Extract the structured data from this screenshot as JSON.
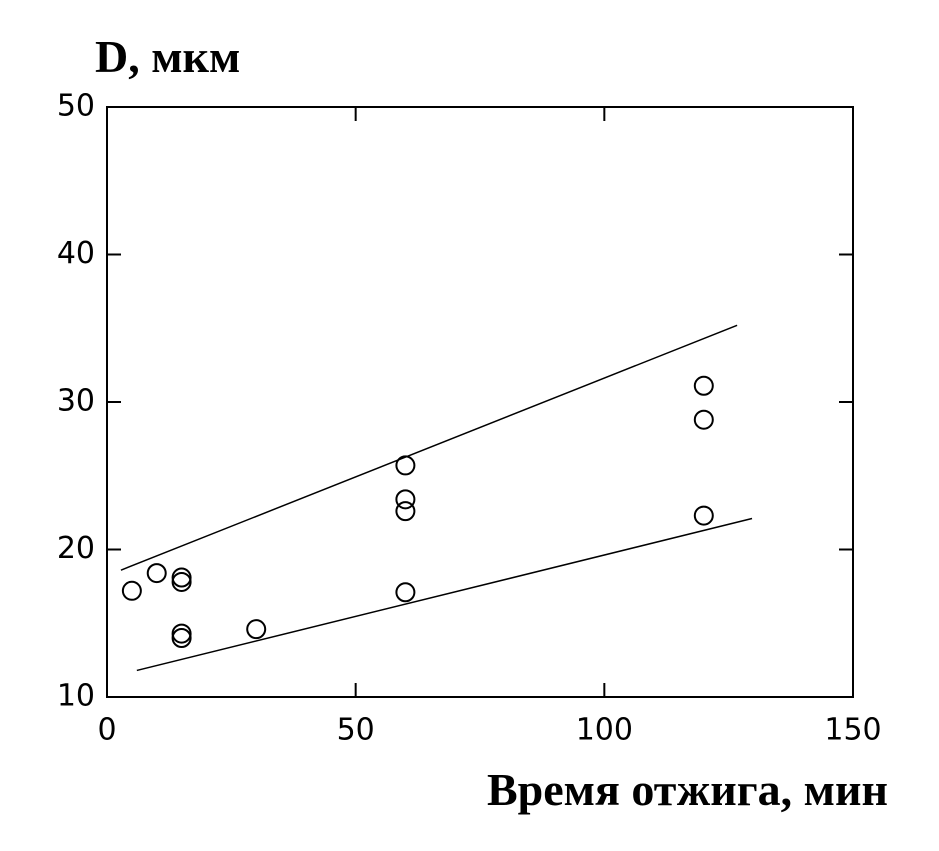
{
  "chart_data": {
    "type": "scatter",
    "title": "D, мкм",
    "x_label": "Время отжига, мин",
    "series": [
      {
        "style": "markers",
        "color": "#000000",
        "x": [
          5,
          10,
          15,
          15,
          15,
          15,
          30,
          60,
          60,
          60,
          60,
          120,
          120,
          120
        ],
        "values": [
          17.2,
          18.4,
          18.1,
          17.8,
          14.3,
          14.0,
          14.6,
          25.7,
          23.4,
          22.6,
          17.1,
          31.1,
          28.8,
          22.3
        ]
      },
      {
        "style": "line",
        "color": "#000000",
        "x": [
          2.8,
          126.7
        ],
        "values": [
          18.6,
          35.2
        ]
      },
      {
        "style": "line",
        "color": "#000000",
        "x": [
          6,
          129.7
        ],
        "values": [
          11.8,
          22.1
        ]
      }
    ],
    "xlim": [
      0,
      150
    ],
    "xticks": [
      0,
      50,
      100,
      150
    ],
    "ylim": [
      10,
      50
    ],
    "yticks": [
      10,
      20,
      30,
      40,
      50
    ],
    "grid": false
  }
}
